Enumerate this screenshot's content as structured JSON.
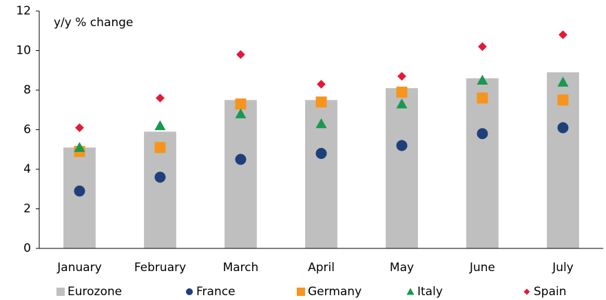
{
  "chart_data": {
    "type": "bar",
    "axis_label": "y/y % change",
    "categories": [
      "January",
      "February",
      "March",
      "April",
      "May",
      "June",
      "July"
    ],
    "series": [
      {
        "name": "Eurozone",
        "color": "#bfbfbf",
        "marker": "bar",
        "values": [
          5.1,
          5.9,
          7.5,
          7.5,
          8.1,
          8.6,
          8.9
        ]
      },
      {
        "name": "France",
        "color": "#1f3f7a",
        "marker": "circle",
        "values": [
          2.9,
          3.6,
          4.5,
          4.8,
          5.2,
          5.8,
          6.1
        ]
      },
      {
        "name": "Germany",
        "color": "#f7941d",
        "marker": "square",
        "values": [
          4.9,
          5.1,
          7.3,
          7.4,
          7.9,
          7.6,
          7.5
        ]
      },
      {
        "name": "Italy",
        "color": "#1a9850",
        "marker": "triangle",
        "values": [
          5.1,
          6.2,
          6.8,
          6.3,
          7.3,
          8.5,
          8.4
        ]
      },
      {
        "name": "Spain",
        "color": "#e31a37",
        "marker": "diamond",
        "values": [
          6.1,
          7.6,
          9.8,
          8.3,
          8.7,
          10.2,
          10.8
        ]
      }
    ],
    "ylim": [
      0,
      12
    ],
    "yticks": [
      0,
      2,
      4,
      6,
      8,
      10,
      12
    ],
    "legend": "bottom"
  }
}
